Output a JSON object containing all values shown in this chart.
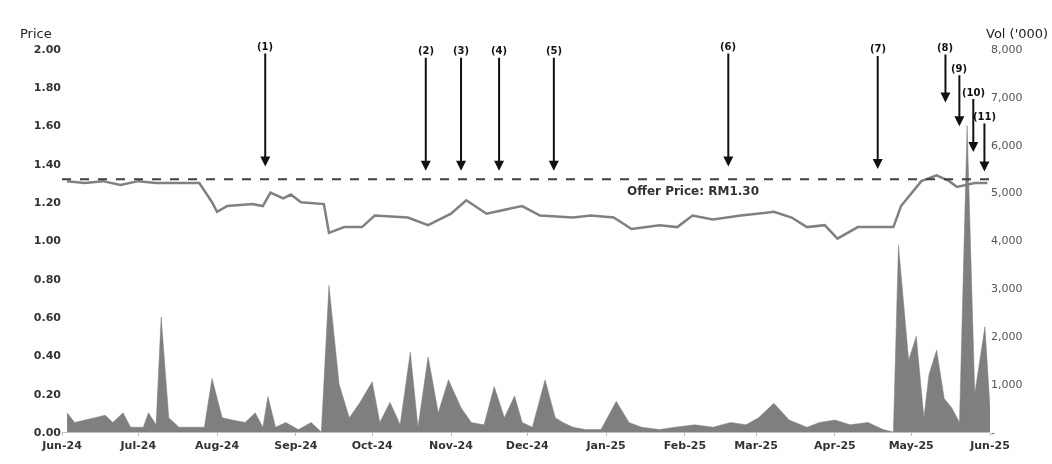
{
  "chart_data": {
    "type": "line",
    "ylabel": "Price",
    "y2label": "Vol ('000)",
    "xlim": [
      "2024-06-01",
      "2025-06-01"
    ],
    "xticks": [
      {
        "value": "2024-06-01",
        "label": "Jun-24"
      },
      {
        "value": "2024-07-01",
        "label": "Jul-24"
      },
      {
        "value": "2024-08-01",
        "label": "Aug-24"
      },
      {
        "value": "2024-09-01",
        "label": "Sep-24"
      },
      {
        "value": "2024-10-01",
        "label": "Oct-24"
      },
      {
        "value": "2024-11-01",
        "label": "Nov-24"
      },
      {
        "value": "2024-12-01",
        "label": "Dec-24"
      },
      {
        "value": "2025-01-01",
        "label": "Jan-25"
      },
      {
        "value": "2025-02-01",
        "label": "Feb-25"
      },
      {
        "value": "2025-03-01",
        "label": "Mar-25"
      },
      {
        "value": "2025-04-01",
        "label": "Apr-25"
      },
      {
        "value": "2025-05-01",
        "label": "May-25"
      },
      {
        "value": "2025-06-01",
        "label": "Jun-25"
      }
    ],
    "ylim": [
      0,
      2
    ],
    "yticks": [
      {
        "value": 0,
        "label": "0.00"
      },
      {
        "value": 0.2,
        "label": "0.20"
      },
      {
        "value": 0.4,
        "label": "0.40"
      },
      {
        "value": 0.6,
        "label": "0.60"
      },
      {
        "value": 0.8,
        "label": "0.80"
      },
      {
        "value": 1,
        "label": "1.00"
      },
      {
        "value": 1.2,
        "label": "1.20"
      },
      {
        "value": 1.4,
        "label": "1.40"
      },
      {
        "value": 1.6,
        "label": "1.60"
      },
      {
        "value": 1.8,
        "label": "1.80"
      },
      {
        "value": 2,
        "label": "2.00"
      }
    ],
    "y2lim": [
      0,
      8000
    ],
    "y2ticks": [
      {
        "value": 0,
        "label": "-"
      },
      {
        "value": 1000,
        "label": "1,000"
      },
      {
        "value": 2000,
        "label": "2,000"
      },
      {
        "value": 3000,
        "label": "3,000"
      },
      {
        "value": 4000,
        "label": "4,000"
      },
      {
        "value": 5000,
        "label": "5,000"
      },
      {
        "value": 6000,
        "label": "6,000"
      },
      {
        "value": 7000,
        "label": "7,000"
      },
      {
        "value": 8000,
        "label": "8,000"
      }
    ],
    "series": [
      {
        "type": "area",
        "axis": "y2",
        "color": "#7f7f7f",
        "x": [
          "2024-06-03",
          "2024-06-06",
          "2024-06-10",
          "2024-06-14",
          "2024-06-18",
          "2024-06-21",
          "2024-06-25",
          "2024-06-28",
          "2024-07-03",
          "2024-07-05",
          "2024-07-08",
          "2024-07-10",
          "2024-07-13",
          "2024-07-17",
          "2024-07-22",
          "2024-07-27",
          "2024-07-30",
          "2024-08-03",
          "2024-08-07",
          "2024-08-12",
          "2024-08-16",
          "2024-08-19",
          "2024-08-21",
          "2024-08-24",
          "2024-08-28",
          "2024-09-02",
          "2024-09-07",
          "2024-09-11",
          "2024-09-14",
          "2024-09-18",
          "2024-09-22",
          "2024-09-26",
          "2024-10-01",
          "2024-10-04",
          "2024-10-08",
          "2024-10-12",
          "2024-10-16",
          "2024-10-19",
          "2024-10-23",
          "2024-10-27",
          "2024-10-31",
          "2024-11-05",
          "2024-11-09",
          "2024-11-14",
          "2024-11-18",
          "2024-11-22",
          "2024-11-26",
          "2024-11-29",
          "2024-12-03",
          "2024-12-08",
          "2024-12-12",
          "2024-12-15",
          "2024-12-19",
          "2024-12-24",
          "2024-12-30",
          "2025-01-05",
          "2025-01-10",
          "2025-01-15",
          "2025-01-22",
          "2025-01-28",
          "2025-02-05",
          "2025-02-12",
          "2025-02-19",
          "2025-02-25",
          "2025-03-02",
          "2025-03-08",
          "2025-03-14",
          "2025-03-21",
          "2025-03-26",
          "2025-04-01",
          "2025-04-07",
          "2025-04-14",
          "2025-04-20",
          "2025-04-24",
          "2025-04-26",
          "2025-04-30",
          "2025-05-03",
          "2025-05-06",
          "2025-05-08",
          "2025-05-11",
          "2025-05-14",
          "2025-05-17",
          "2025-05-20",
          "2025-05-23",
          "2025-05-26",
          "2025-05-30",
          "2025-06-01"
        ],
        "values": [
          400,
          200,
          250,
          300,
          350,
          200,
          400,
          100,
          100,
          400,
          150,
          2400,
          300,
          100,
          100,
          100,
          1120,
          300,
          250,
          200,
          400,
          100,
          740,
          100,
          200,
          50,
          200,
          0,
          3060,
          1000,
          300,
          600,
          1050,
          200,
          620,
          150,
          1670,
          100,
          1570,
          400,
          1090,
          500,
          200,
          150,
          950,
          300,
          750,
          200,
          100,
          1090,
          300,
          200,
          100,
          50,
          50,
          640,
          200,
          100,
          50,
          100,
          150,
          100,
          200,
          150,
          300,
          600,
          250,
          100,
          200,
          250,
          150,
          200,
          50,
          0,
          3900,
          1500,
          2000,
          300,
          1200,
          1710,
          700,
          500,
          200,
          6400,
          800,
          2200,
          500
        ]
      },
      {
        "color": "#808080",
        "x": [
          "2024-06-03",
          "2024-06-10",
          "2024-06-17",
          "2024-06-24",
          "2024-07-01",
          "2024-07-08",
          "2024-07-15",
          "2024-07-25",
          "2024-07-30",
          "2024-08-01",
          "2024-08-05",
          "2024-08-15",
          "2024-08-19",
          "2024-08-22",
          "2024-08-27",
          "2024-08-30",
          "2024-09-03",
          "2024-09-12",
          "2024-09-14",
          "2024-09-20",
          "2024-09-27",
          "2024-10-02",
          "2024-10-15",
          "2024-10-23",
          "2024-11-01",
          "2024-11-07",
          "2024-11-15",
          "2024-11-29",
          "2024-12-06",
          "2024-12-19",
          "2024-12-26",
          "2025-01-04",
          "2025-01-11",
          "2025-01-22",
          "2025-01-29",
          "2025-02-04",
          "2025-02-12",
          "2025-02-23",
          "2025-03-08",
          "2025-03-15",
          "2025-03-21",
          "2025-03-28",
          "2025-04-02",
          "2025-04-10",
          "2025-04-24",
          "2025-04-27",
          "2025-05-05",
          "2025-05-11",
          "2025-05-16",
          "2025-05-19",
          "2025-05-26",
          "2025-05-31"
        ],
        "values": [
          1.31,
          1.3,
          1.31,
          1.29,
          1.31,
          1.3,
          1.3,
          1.3,
          1.2,
          1.15,
          1.18,
          1.19,
          1.18,
          1.25,
          1.22,
          1.24,
          1.2,
          1.19,
          1.04,
          1.07,
          1.07,
          1.13,
          1.12,
          1.08,
          1.14,
          1.21,
          1.14,
          1.18,
          1.13,
          1.12,
          1.13,
          1.12,
          1.06,
          1.08,
          1.07,
          1.13,
          1.11,
          1.13,
          1.15,
          1.12,
          1.07,
          1.08,
          1.01,
          1.07,
          1.07,
          1.18,
          1.31,
          1.34,
          1.31,
          1.28,
          1.3,
          1.3
        ]
      }
    ],
    "ref_lines": [
      {
        "axis": "y",
        "value": 1.32,
        "label": "Offer Price: RM1.30",
        "color": "#404040",
        "line_style": "dashed"
      }
    ],
    "annotations": [
      "(1)",
      "(2)",
      "(3)",
      "(4)",
      "(5)",
      "(6)",
      "(7)",
      "(8)",
      "(9)",
      "(10)",
      "(11)"
    ]
  }
}
